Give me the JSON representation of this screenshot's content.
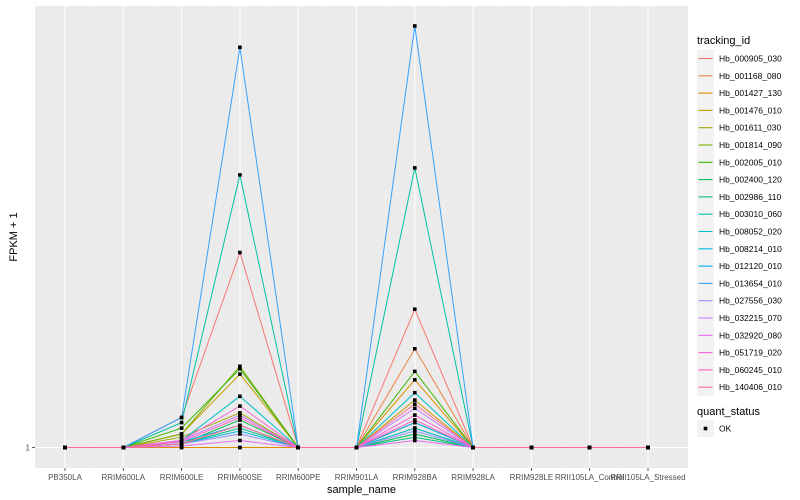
{
  "chart_data": {
    "type": "line",
    "xlabel": "sample_name",
    "ylabel": "FPKM + 1",
    "y_tick_labels": [
      "1"
    ],
    "y_scale": "log",
    "categories": [
      "PB350LA",
      "RRIM600LA",
      "RRIM600LE",
      "RRIM600SE",
      "RRIM600PE",
      "RRIM901LA",
      "RRIM928BA",
      "RRIM928LA",
      "RRIM928LE",
      "RRII105LA_Control",
      "RRII105LA_Stressed"
    ],
    "x_tick_labels": [
      "PB350LA",
      "RRIM600LA",
      "RRIM600LE",
      "RRIM600SE",
      "RRIM600PE",
      "RRIM901LA",
      "RRIM928BA",
      "RRIM928LA",
      "RRIM928LE",
      "RRII105LA_Control",
      "RRII105LA_Stressed"
    ],
    "legend_color_title": "tracking_id",
    "legend_shape_title": "quant_status",
    "point_status": "OK",
    "series": [
      {
        "name": "Hb_000905_030",
        "color": "#F8766D",
        "values": [
          1,
          1,
          1.5,
          14,
          1,
          1,
          6.5,
          1,
          1,
          1,
          1
        ]
      },
      {
        "name": "Hb_001168_080",
        "color": "#EE8043",
        "values": [
          1,
          1,
          1,
          1,
          1,
          1,
          3.8,
          1,
          1,
          1,
          1
        ]
      },
      {
        "name": "Hb_001427_130",
        "color": "#DE8C00",
        "values": [
          1,
          1,
          1,
          1,
          1,
          1,
          2.5,
          1,
          1,
          1,
          1
        ]
      },
      {
        "name": "Hb_001476_010",
        "color": "#C49A00",
        "values": [
          1,
          1,
          1.2,
          2.7,
          1,
          1,
          1.9,
          1,
          1,
          1,
          1
        ]
      },
      {
        "name": "Hb_001611_030",
        "color": "#A3A500",
        "values": [
          1,
          1,
          1.15,
          1.6,
          1,
          1,
          1.3,
          1,
          1,
          1,
          1
        ]
      },
      {
        "name": "Hb_001814_090",
        "color": "#7CAE00",
        "values": [
          1,
          1,
          1.2,
          3.0,
          1,
          1,
          1.4,
          1,
          1,
          1,
          1
        ]
      },
      {
        "name": "Hb_002005_010",
        "color": "#39B600",
        "values": [
          1,
          1,
          1.3,
          2.9,
          1,
          1,
          2.8,
          1,
          1,
          1,
          1
        ]
      },
      {
        "name": "Hb_002400_120",
        "color": "#00BB4E",
        "values": [
          1,
          1,
          1.05,
          1.45,
          1,
          1,
          1.2,
          1,
          1,
          1,
          1
        ]
      },
      {
        "name": "Hb_002986_110",
        "color": "#00BF7D",
        "values": [
          1,
          1,
          1.05,
          1.3,
          1,
          1,
          1.15,
          1,
          1,
          1,
          1
        ]
      },
      {
        "name": "Hb_003010_060",
        "color": "#00C1A3",
        "values": [
          1,
          1,
          1.4,
          40,
          1,
          1,
          44,
          1,
          1,
          1,
          1
        ]
      },
      {
        "name": "Hb_008052_020",
        "color": "#00BFC4",
        "values": [
          1,
          1,
          1.1,
          2.0,
          1,
          1,
          2.1,
          1,
          1,
          1,
          1
        ]
      },
      {
        "name": "Hb_008214_010",
        "color": "#00BAE0",
        "values": [
          1,
          1,
          1.05,
          1.25,
          1,
          1,
          1.3,
          1,
          1,
          1,
          1
        ]
      },
      {
        "name": "Hb_012120_010",
        "color": "#00B0F6",
        "values": [
          1,
          1,
          1.08,
          1.35,
          1,
          1,
          1.4,
          1,
          1,
          1,
          1
        ]
      },
      {
        "name": "Hb_013654_010",
        "color": "#35A2FF",
        "values": [
          1,
          1,
          1.5,
          225,
          1,
          1,
          300,
          1,
          1,
          1,
          1
        ]
      },
      {
        "name": "Hb_027556_030",
        "color": "#9590FF",
        "values": [
          1,
          1,
          1.05,
          1.2,
          1,
          1,
          1.25,
          1,
          1,
          1,
          1
        ]
      },
      {
        "name": "Hb_032215_070",
        "color": "#C77CFF",
        "values": [
          1,
          1,
          1.1,
          1.55,
          1,
          1,
          1.7,
          1,
          1,
          1,
          1
        ]
      },
      {
        "name": "Hb_032920_080",
        "color": "#E76BF3",
        "values": [
          1,
          1,
          1.02,
          1.1,
          1,
          1,
          1.1,
          1,
          1,
          1,
          1
        ]
      },
      {
        "name": "Hb_051719_020",
        "color": "#FA62DB",
        "values": [
          1,
          1,
          1.1,
          1.75,
          1,
          1,
          1.55,
          1,
          1,
          1,
          1
        ]
      },
      {
        "name": "Hb_060245_010",
        "color": "#FF62BC",
        "values": [
          1,
          1,
          1.08,
          1.5,
          1,
          1,
          1.45,
          1,
          1,
          1,
          1
        ]
      },
      {
        "name": "Hb_140406_010",
        "color": "#FF6C91",
        "values": [
          1,
          1,
          1.05,
          1.35,
          1,
          1,
          1.8,
          1,
          1,
          1,
          1
        ]
      }
    ]
  }
}
